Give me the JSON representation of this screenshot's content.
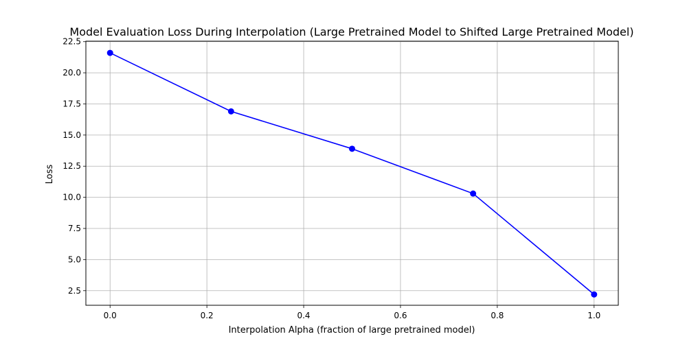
{
  "chart_data": {
    "type": "line",
    "title": "Model Evaluation Loss During Interpolation (Large Pretrained Model to Shifted Large Pretrained Model)",
    "xlabel": "Interpolation Alpha (fraction of large pretrained model)",
    "ylabel": "Loss",
    "xlim": [
      -0.05,
      1.05
    ],
    "ylim": [
      1.33,
      22.54
    ],
    "xticks": [
      0.0,
      0.2,
      0.4,
      0.6,
      0.8,
      1.0
    ],
    "xtick_labels": [
      "0.0",
      "0.2",
      "0.4",
      "0.6",
      "0.8",
      "1.0"
    ],
    "yticks": [
      2.5,
      5.0,
      7.5,
      10.0,
      12.5,
      15.0,
      17.5,
      20.0,
      22.5
    ],
    "ytick_labels": [
      "2.5",
      "5.0",
      "7.5",
      "10.0",
      "12.5",
      "15.0",
      "17.5",
      "20.0",
      "22.5"
    ],
    "grid": true,
    "series": [
      {
        "color": "#0000ff",
        "marker": "circle",
        "x": [
          0.0,
          0.25,
          0.5,
          0.75,
          1.0
        ],
        "y": [
          21.6,
          16.9,
          13.9,
          10.3,
          2.2
        ]
      }
    ]
  }
}
